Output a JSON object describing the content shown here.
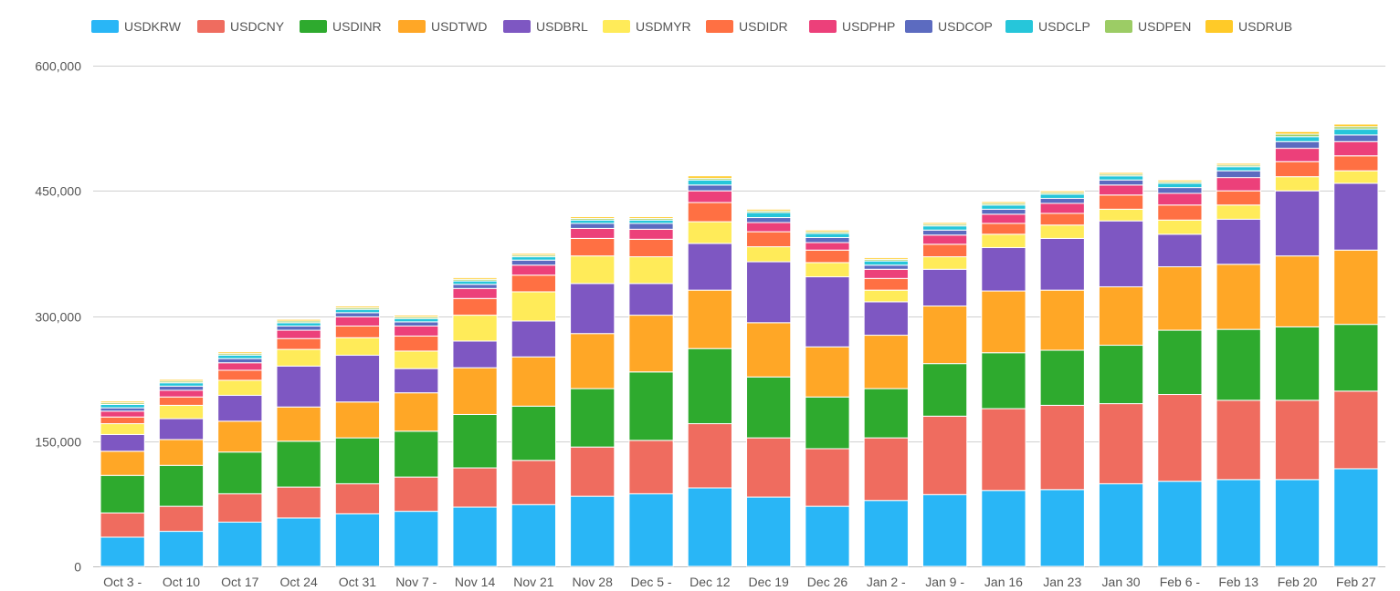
{
  "chart_data": {
    "type": "bar",
    "stacked": true,
    "title": "",
    "xlabel": "",
    "ylabel": "",
    "ylim": [
      0,
      600000
    ],
    "y_ticks": [
      0,
      150000,
      300000,
      450000,
      600000
    ],
    "y_tick_labels": [
      "0",
      "150,000",
      "300,000",
      "450,000",
      "600,000"
    ],
    "grid": true,
    "legend_position": "top",
    "categories": [
      "Oct 3 -",
      "Oct 10",
      "Oct 17",
      "Oct 24",
      "Oct 31",
      "Nov 7 -",
      "Nov 14",
      "Nov 21",
      "Nov 28",
      "Dec 5 -",
      "Dec 12",
      "Dec 19",
      "Dec 26",
      "Jan 2 -",
      "Jan 9 -",
      "Jan 16",
      "Jan 23",
      "Jan 30",
      "Feb 6 -",
      "Feb 13",
      "Feb 20",
      "Feb 27"
    ],
    "series": [
      {
        "name": "USDKRW",
        "color": "#29b6f6",
        "values": [
          35000,
          42000,
          53000,
          58000,
          63000,
          66000,
          71000,
          74000,
          84000,
          87000,
          94000,
          83000,
          72000,
          79000,
          86000,
          91000,
          92000,
          99000,
          102000,
          104000,
          104000,
          117000
        ]
      },
      {
        "name": "USDCNY",
        "color": "#ef6c5f",
        "values": [
          29000,
          30000,
          34000,
          37000,
          36000,
          41000,
          47000,
          53000,
          59000,
          64000,
          77000,
          71000,
          69000,
          75000,
          94000,
          98000,
          101000,
          96000,
          104000,
          95000,
          95000,
          93000
        ]
      },
      {
        "name": "USDINR",
        "color": "#2eaa2e",
        "values": [
          45000,
          49000,
          50000,
          55000,
          55000,
          55000,
          64000,
          65000,
          70000,
          82000,
          90000,
          73000,
          62000,
          59000,
          63000,
          67000,
          66000,
          70000,
          77000,
          85000,
          88000,
          80000
        ]
      },
      {
        "name": "USDTWD",
        "color": "#ffa726",
        "values": [
          29000,
          31000,
          37000,
          41000,
          43000,
          46000,
          56000,
          59000,
          66000,
          68000,
          70000,
          65000,
          60000,
          64000,
          69000,
          74000,
          72000,
          70000,
          76000,
          78000,
          85000,
          89000
        ]
      },
      {
        "name": "USDBRL",
        "color": "#7e57c2",
        "values": [
          20000,
          25000,
          31000,
          49000,
          56000,
          29000,
          32000,
          43000,
          60000,
          38000,
          56000,
          73000,
          84000,
          40000,
          44000,
          52000,
          62000,
          79000,
          39000,
          54000,
          78000,
          80000
        ]
      },
      {
        "name": "USDMYR",
        "color": "#ffeb59",
        "values": [
          13000,
          16000,
          18000,
          20000,
          21000,
          21000,
          31000,
          35000,
          33000,
          32000,
          26000,
          18000,
          17000,
          14000,
          15000,
          16000,
          16000,
          14000,
          17000,
          17000,
          17000,
          15000
        ]
      },
      {
        "name": "USDIDR",
        "color": "#ff7043",
        "values": [
          8000,
          10000,
          12000,
          13000,
          14000,
          18000,
          20000,
          20000,
          21000,
          21000,
          23000,
          18000,
          15000,
          14000,
          15000,
          13000,
          14000,
          17000,
          18000,
          17000,
          18000,
          18000
        ]
      },
      {
        "name": "USDPHP",
        "color": "#ec407a",
        "values": [
          7000,
          8000,
          9000,
          10000,
          11000,
          12000,
          12000,
          12000,
          12000,
          12000,
          14000,
          11000,
          9000,
          11000,
          11000,
          11000,
          12000,
          12000,
          14000,
          16000,
          16000,
          17000
        ]
      },
      {
        "name": "USDCOP",
        "color": "#5c6bc0",
        "values": [
          4000,
          5000,
          5000,
          5000,
          5000,
          5000,
          5000,
          6000,
          6000,
          7000,
          7000,
          6000,
          6000,
          5000,
          6000,
          6000,
          6000,
          6000,
          7000,
          8000,
          8000,
          8000
        ]
      },
      {
        "name": "USDCLP",
        "color": "#26c6da",
        "values": [
          4000,
          4000,
          4000,
          4000,
          4000,
          4000,
          4000,
          4000,
          4000,
          4000,
          6000,
          6000,
          5000,
          5000,
          5000,
          5000,
          5000,
          5000,
          5000,
          5000,
          6000,
          7000
        ]
      },
      {
        "name": "USDPEN",
        "color": "#9ccc65",
        "values": [
          2000,
          2000,
          2000,
          2000,
          2000,
          2000,
          2000,
          2000,
          2000,
          2000,
          2000,
          2000,
          2000,
          2000,
          2000,
          2000,
          2000,
          2000,
          2000,
          2000,
          3000,
          3000
        ]
      },
      {
        "name": "USDRUB",
        "color": "#ffca28",
        "values": [
          2000,
          2000,
          2000,
          2000,
          2000,
          2000,
          2000,
          2000,
          2000,
          2000,
          3000,
          2000,
          2000,
          2000,
          2000,
          2000,
          2000,
          2000,
          2000,
          2000,
          3000,
          3000
        ]
      }
    ]
  }
}
